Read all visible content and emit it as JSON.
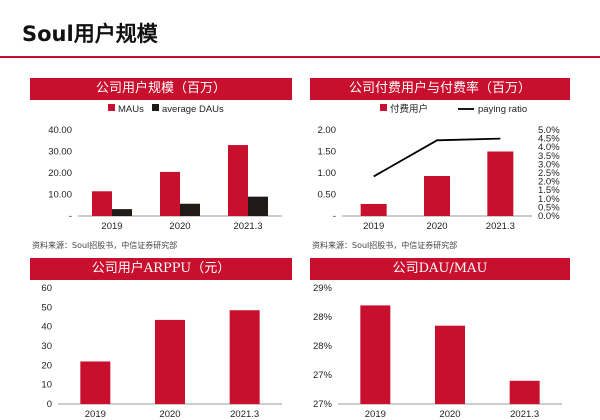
{
  "page": {
    "title": "Soul用户规模"
  },
  "panels": [
    {
      "header": "公司用户规模（百万）",
      "source": "资料来源：Soul招股书，中信证券研究部"
    },
    {
      "header": "公司付费用户与付费率（百万）",
      "source": "资料来源：Soul招股书，中信证券研究部"
    },
    {
      "header": "公司用户ARPPU（元）",
      "source": ""
    },
    {
      "header": "公司DAU/MAU",
      "source": ""
    }
  ],
  "chart_data": [
    {
      "type": "bar",
      "categories": [
        "2019",
        "2020",
        "2021.3"
      ],
      "series": [
        {
          "name": "MAUs",
          "values": [
            11.5,
            20.5,
            33.0
          ],
          "color": "#c8102e"
        },
        {
          "name": "average DAUs",
          "values": [
            3.2,
            5.7,
            9.0
          ],
          "color": "#1f1a17"
        }
      ],
      "ylim": [
        0,
        40
      ],
      "yticks": [
        "-",
        "10.00",
        "20.00",
        "30.00",
        "40.00"
      ],
      "legend_position": "top"
    },
    {
      "type": "bar",
      "categories": [
        "2019",
        "2020",
        "2021.3"
      ],
      "series": [
        {
          "name": "付费用户",
          "values": [
            0.28,
            0.93,
            1.5
          ],
          "color": "#c8102e",
          "axis": "left"
        },
        {
          "name": "paying ratio",
          "values": [
            2.3,
            4.4,
            4.5
          ],
          "color": "#000000",
          "axis": "right",
          "kind": "line"
        }
      ],
      "ylim": [
        0,
        2
      ],
      "yticks": [
        "-",
        "0.50",
        "1.00",
        "1.50",
        "2.00"
      ],
      "y2lim": [
        0,
        5
      ],
      "y2ticks": [
        "0.0%",
        "0.5%",
        "1.0%",
        "1.5%",
        "2.0%",
        "2.5%",
        "3.0%",
        "3.5%",
        "4.0%",
        "4.5%",
        "5.0%"
      ],
      "legend_position": "top"
    },
    {
      "type": "bar",
      "categories": [
        "2019",
        "2020",
        "2021.3"
      ],
      "series": [
        {
          "name": "",
          "values": [
            22,
            43.5,
            48.5
          ],
          "color": "#c8102e"
        }
      ],
      "ylim": [
        0,
        60
      ],
      "yticks": [
        "0",
        "10",
        "20",
        "30",
        "40",
        "50",
        "60"
      ]
    },
    {
      "type": "bar",
      "categories": [
        "2019",
        "2020",
        "2021.3"
      ],
      "series": [
        {
          "name": "",
          "values": [
            28.7,
            28.35,
            27.4
          ],
          "color": "#c8102e"
        }
      ],
      "ylim": [
        27,
        29
      ],
      "ytick_values": [
        27,
        27.5,
        28,
        28.5,
        29
      ],
      "yticks": [
        "27%",
        "27%",
        "28%",
        "28%",
        "29%"
      ]
    }
  ]
}
